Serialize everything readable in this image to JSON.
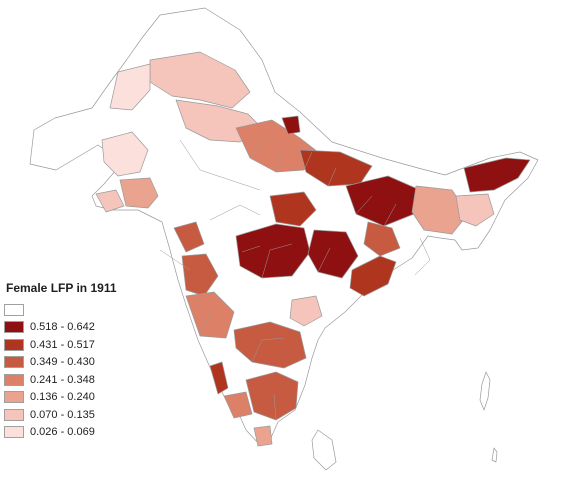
{
  "legend": {
    "title": "Female LFP in 1911",
    "classes": [
      {
        "label": "",
        "color": "#ffffff"
      },
      {
        "label": "0.518 - 0.642",
        "color": "#8f1010"
      },
      {
        "label": "0.431 - 0.517",
        "color": "#b0351f"
      },
      {
        "label": "0.349 - 0.430",
        "color": "#c65b42"
      },
      {
        "label": "0.241 - 0.348",
        "color": "#dc8068"
      },
      {
        "label": "0.136 - 0.240",
        "color": "#e9a38f"
      },
      {
        "label": "0.070 - 0.135",
        "color": "#f5c4bb"
      },
      {
        "label": "0.026 - 0.069",
        "color": "#fbe0dc"
      }
    ]
  }
}
